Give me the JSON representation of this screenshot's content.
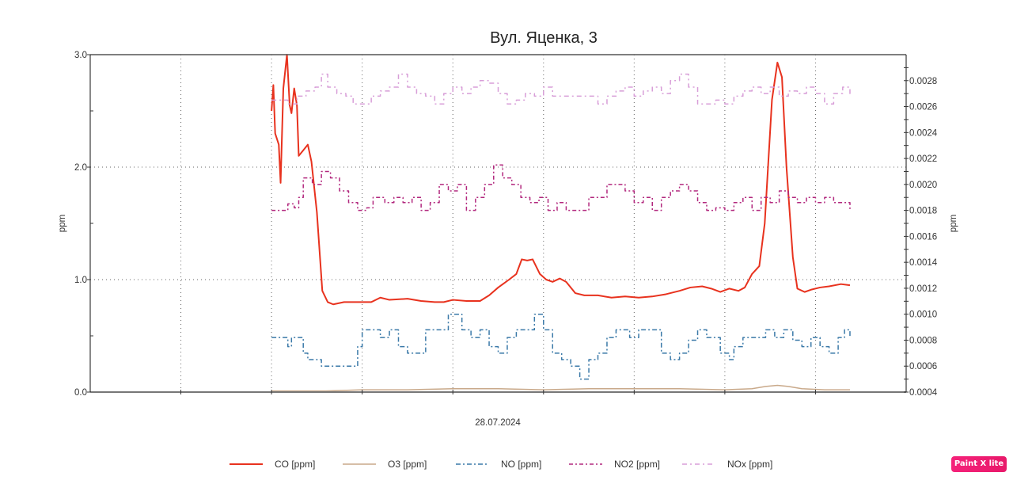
{
  "chart_data": {
    "type": "line",
    "title": "Вул. Яценка, 3",
    "xlabel": "28.07.2024",
    "ylabel": "ppm",
    "y2label": "ppm",
    "xlim": [
      0,
      9
    ],
    "ylim": [
      0,
      3.0
    ],
    "y2lim": [
      0.0004,
      0.003
    ],
    "yticks": [
      "0.0",
      "1.0",
      "2.0",
      "3.0"
    ],
    "yticks_values": [
      0,
      1,
      2,
      3
    ],
    "y2ticks": [
      "0.0004",
      "0.0006",
      "0.0008",
      "0.0010",
      "0.0012",
      "0.0014",
      "0.0016",
      "0.0018",
      "0.0020",
      "0.0022",
      "0.0024",
      "0.0026",
      "0.0028"
    ],
    "y2ticks_values": [
      0.0004,
      0.0006,
      0.0008,
      0.001,
      0.0012,
      0.0014,
      0.0016,
      0.0018,
      0.002,
      0.0022,
      0.0024,
      0.0026,
      0.0028
    ],
    "xgrid": [
      1,
      2,
      3,
      4,
      5,
      6,
      7,
      8
    ],
    "ygrid": [
      1,
      2
    ],
    "grid": true,
    "legend_position": "bottom",
    "series": [
      {
        "name": "CO [ppm]",
        "axis": "left",
        "color": "#e8321e",
        "dash": "solid",
        "width": 2,
        "points": [
          [
            2.0,
            2.5
          ],
          [
            2.02,
            2.73
          ],
          [
            2.04,
            2.3
          ],
          [
            2.08,
            2.2
          ],
          [
            2.1,
            1.86
          ],
          [
            2.13,
            2.7
          ],
          [
            2.17,
            3.0
          ],
          [
            2.2,
            2.55
          ],
          [
            2.22,
            2.48
          ],
          [
            2.25,
            2.7
          ],
          [
            2.28,
            2.55
          ],
          [
            2.3,
            2.1
          ],
          [
            2.35,
            2.15
          ],
          [
            2.4,
            2.2
          ],
          [
            2.44,
            2.05
          ],
          [
            2.5,
            1.6
          ],
          [
            2.56,
            0.9
          ],
          [
            2.62,
            0.8
          ],
          [
            2.68,
            0.78
          ],
          [
            2.8,
            0.8
          ],
          [
            3.0,
            0.8
          ],
          [
            3.1,
            0.8
          ],
          [
            3.2,
            0.84
          ],
          [
            3.3,
            0.82
          ],
          [
            3.5,
            0.83
          ],
          [
            3.65,
            0.81
          ],
          [
            3.8,
            0.8
          ],
          [
            3.9,
            0.8
          ],
          [
            4.0,
            0.82
          ],
          [
            4.15,
            0.81
          ],
          [
            4.3,
            0.81
          ],
          [
            4.4,
            0.86
          ],
          [
            4.5,
            0.93
          ],
          [
            4.62,
            1.0
          ],
          [
            4.7,
            1.05
          ],
          [
            4.76,
            1.18
          ],
          [
            4.82,
            1.17
          ],
          [
            4.88,
            1.18
          ],
          [
            4.96,
            1.05
          ],
          [
            5.03,
            1.0
          ],
          [
            5.1,
            0.98
          ],
          [
            5.18,
            1.01
          ],
          [
            5.25,
            0.98
          ],
          [
            5.35,
            0.88
          ],
          [
            5.45,
            0.86
          ],
          [
            5.6,
            0.86
          ],
          [
            5.75,
            0.84
          ],
          [
            5.9,
            0.85
          ],
          [
            6.05,
            0.84
          ],
          [
            6.2,
            0.85
          ],
          [
            6.35,
            0.87
          ],
          [
            6.5,
            0.9
          ],
          [
            6.62,
            0.93
          ],
          [
            6.75,
            0.94
          ],
          [
            6.85,
            0.92
          ],
          [
            6.95,
            0.89
          ],
          [
            7.05,
            0.92
          ],
          [
            7.15,
            0.9
          ],
          [
            7.22,
            0.93
          ],
          [
            7.3,
            1.05
          ],
          [
            7.38,
            1.12
          ],
          [
            7.44,
            1.5
          ],
          [
            7.52,
            2.6
          ],
          [
            7.58,
            2.93
          ],
          [
            7.63,
            2.8
          ],
          [
            7.68,
            2.0
          ],
          [
            7.75,
            1.2
          ],
          [
            7.8,
            0.92
          ],
          [
            7.88,
            0.89
          ],
          [
            7.95,
            0.91
          ],
          [
            8.05,
            0.93
          ],
          [
            8.15,
            0.94
          ],
          [
            8.28,
            0.96
          ],
          [
            8.38,
            0.95
          ]
        ]
      },
      {
        "name": "O3 [ppm]",
        "axis": "left",
        "color": "#c9a98a",
        "dash": "solid",
        "width": 1.5,
        "points": [
          [
            2.0,
            0.01
          ],
          [
            2.6,
            0.01
          ],
          [
            3.0,
            0.02
          ],
          [
            3.5,
            0.02
          ],
          [
            4.0,
            0.03
          ],
          [
            4.5,
            0.03
          ],
          [
            5.0,
            0.02
          ],
          [
            5.5,
            0.03
          ],
          [
            6.0,
            0.03
          ],
          [
            6.5,
            0.03
          ],
          [
            7.0,
            0.02
          ],
          [
            7.3,
            0.03
          ],
          [
            7.45,
            0.05
          ],
          [
            7.58,
            0.06
          ],
          [
            7.7,
            0.05
          ],
          [
            7.85,
            0.03
          ],
          [
            8.1,
            0.02
          ],
          [
            8.38,
            0.02
          ]
        ]
      },
      {
        "name": "NO [ppm]",
        "axis": "right",
        "color": "#3a79a8",
        "dash": "dashdot",
        "width": 1.5,
        "points": [
          [
            2.0,
            0.00082
          ],
          [
            2.12,
            0.00082
          ],
          [
            2.18,
            0.00075
          ],
          [
            2.22,
            0.00082
          ],
          [
            2.3,
            0.00082
          ],
          [
            2.35,
            0.0007
          ],
          [
            2.4,
            0.00065
          ],
          [
            2.55,
            0.0006
          ],
          [
            2.85,
            0.0006
          ],
          [
            2.95,
            0.00075
          ],
          [
            3.0,
            0.00088
          ],
          [
            3.1,
            0.00088
          ],
          [
            3.2,
            0.00082
          ],
          [
            3.3,
            0.00088
          ],
          [
            3.4,
            0.00075
          ],
          [
            3.5,
            0.0007
          ],
          [
            3.6,
            0.0007
          ],
          [
            3.7,
            0.00088
          ],
          [
            3.85,
            0.00088
          ],
          [
            3.95,
            0.001
          ],
          [
            4.1,
            0.00088
          ],
          [
            4.2,
            0.00082
          ],
          [
            4.3,
            0.00088
          ],
          [
            4.4,
            0.00075
          ],
          [
            4.5,
            0.0007
          ],
          [
            4.6,
            0.00082
          ],
          [
            4.7,
            0.00088
          ],
          [
            4.8,
            0.00088
          ],
          [
            4.9,
            0.001
          ],
          [
            5.0,
            0.00088
          ],
          [
            5.1,
            0.0007
          ],
          [
            5.2,
            0.00065
          ],
          [
            5.3,
            0.0006
          ],
          [
            5.4,
            0.0005
          ],
          [
            5.5,
            0.00065
          ],
          [
            5.6,
            0.0007
          ],
          [
            5.7,
            0.00082
          ],
          [
            5.8,
            0.00088
          ],
          [
            5.95,
            0.00082
          ],
          [
            6.05,
            0.00088
          ],
          [
            6.2,
            0.00088
          ],
          [
            6.3,
            0.0007
          ],
          [
            6.4,
            0.00065
          ],
          [
            6.5,
            0.0007
          ],
          [
            6.6,
            0.0008
          ],
          [
            6.7,
            0.00088
          ],
          [
            6.8,
            0.00082
          ],
          [
            6.95,
            0.0007
          ],
          [
            7.05,
            0.00065
          ],
          [
            7.1,
            0.00075
          ],
          [
            7.2,
            0.00082
          ],
          [
            7.35,
            0.00082
          ],
          [
            7.45,
            0.00088
          ],
          [
            7.55,
            0.00082
          ],
          [
            7.65,
            0.00088
          ],
          [
            7.75,
            0.0008
          ],
          [
            7.85,
            0.00075
          ],
          [
            7.95,
            0.00082
          ],
          [
            8.05,
            0.00075
          ],
          [
            8.15,
            0.0007
          ],
          [
            8.25,
            0.00082
          ],
          [
            8.32,
            0.00088
          ],
          [
            8.38,
            0.00082
          ]
        ]
      },
      {
        "name": "NO2 [ppm]",
        "axis": "right",
        "color": "#b2287e",
        "dash": "dashdot2",
        "width": 1.5,
        "points": [
          [
            2.0,
            0.0018
          ],
          [
            2.1,
            0.0018
          ],
          [
            2.18,
            0.00185
          ],
          [
            2.25,
            0.00182
          ],
          [
            2.3,
            0.0019
          ],
          [
            2.35,
            0.00205
          ],
          [
            2.45,
            0.002
          ],
          [
            2.55,
            0.0021
          ],
          [
            2.65,
            0.00205
          ],
          [
            2.75,
            0.00195
          ],
          [
            2.85,
            0.00186
          ],
          [
            2.95,
            0.0018
          ],
          [
            3.05,
            0.00182
          ],
          [
            3.12,
            0.0019
          ],
          [
            3.25,
            0.00186
          ],
          [
            3.35,
            0.0019
          ],
          [
            3.45,
            0.00186
          ],
          [
            3.55,
            0.0019
          ],
          [
            3.65,
            0.0018
          ],
          [
            3.75,
            0.00186
          ],
          [
            3.85,
            0.002
          ],
          [
            3.95,
            0.00195
          ],
          [
            4.05,
            0.002
          ],
          [
            4.15,
            0.0018
          ],
          [
            4.25,
            0.0019
          ],
          [
            4.35,
            0.002
          ],
          [
            4.45,
            0.00215
          ],
          [
            4.55,
            0.00205
          ],
          [
            4.65,
            0.002
          ],
          [
            4.75,
            0.0019
          ],
          [
            4.85,
            0.00186
          ],
          [
            4.95,
            0.0019
          ],
          [
            5.05,
            0.0018
          ],
          [
            5.15,
            0.00186
          ],
          [
            5.25,
            0.0018
          ],
          [
            5.4,
            0.0018
          ],
          [
            5.5,
            0.0019
          ],
          [
            5.6,
            0.0019
          ],
          [
            5.7,
            0.002
          ],
          [
            5.8,
            0.002
          ],
          [
            5.9,
            0.00195
          ],
          [
            6.0,
            0.00186
          ],
          [
            6.1,
            0.0019
          ],
          [
            6.2,
            0.0018
          ],
          [
            6.3,
            0.0019
          ],
          [
            6.4,
            0.00195
          ],
          [
            6.5,
            0.002
          ],
          [
            6.6,
            0.00195
          ],
          [
            6.7,
            0.00186
          ],
          [
            6.8,
            0.0018
          ],
          [
            6.9,
            0.00182
          ],
          [
            7.0,
            0.0018
          ],
          [
            7.1,
            0.00186
          ],
          [
            7.2,
            0.0019
          ],
          [
            7.3,
            0.0018
          ],
          [
            7.4,
            0.0019
          ],
          [
            7.5,
            0.00186
          ],
          [
            7.6,
            0.00195
          ],
          [
            7.7,
            0.0019
          ],
          [
            7.8,
            0.00186
          ],
          [
            7.9,
            0.0019
          ],
          [
            8.0,
            0.00186
          ],
          [
            8.1,
            0.0019
          ],
          [
            8.2,
            0.00186
          ],
          [
            8.3,
            0.00186
          ],
          [
            8.38,
            0.0018
          ]
        ]
      },
      {
        "name": "NOx [ppm]",
        "axis": "right",
        "color": "#d89ed8",
        "dash": "dashdot3",
        "width": 1.5,
        "points": [
          [
            2.0,
            0.00265
          ],
          [
            2.1,
            0.00265
          ],
          [
            2.18,
            0.00262
          ],
          [
            2.28,
            0.00268
          ],
          [
            2.38,
            0.00272
          ],
          [
            2.48,
            0.00275
          ],
          [
            2.55,
            0.00285
          ],
          [
            2.62,
            0.00275
          ],
          [
            2.72,
            0.0027
          ],
          [
            2.82,
            0.00268
          ],
          [
            2.9,
            0.00262
          ],
          [
            3.0,
            0.00262
          ],
          [
            3.1,
            0.00268
          ],
          [
            3.2,
            0.00272
          ],
          [
            3.3,
            0.00275
          ],
          [
            3.4,
            0.00285
          ],
          [
            3.5,
            0.00275
          ],
          [
            3.6,
            0.0027
          ],
          [
            3.7,
            0.00268
          ],
          [
            3.8,
            0.00262
          ],
          [
            3.9,
            0.0027
          ],
          [
            4.0,
            0.00275
          ],
          [
            4.1,
            0.0027
          ],
          [
            4.2,
            0.00275
          ],
          [
            4.3,
            0.0028
          ],
          [
            4.4,
            0.00278
          ],
          [
            4.5,
            0.0027
          ],
          [
            4.6,
            0.00262
          ],
          [
            4.7,
            0.00265
          ],
          [
            4.8,
            0.0027
          ],
          [
            4.9,
            0.00268
          ],
          [
            5.0,
            0.00275
          ],
          [
            5.1,
            0.00268
          ],
          [
            5.3,
            0.00268
          ],
          [
            5.5,
            0.00268
          ],
          [
            5.6,
            0.00262
          ],
          [
            5.7,
            0.00268
          ],
          [
            5.8,
            0.00272
          ],
          [
            5.9,
            0.00275
          ],
          [
            6.0,
            0.00268
          ],
          [
            6.1,
            0.00272
          ],
          [
            6.2,
            0.00275
          ],
          [
            6.3,
            0.0027
          ],
          [
            6.4,
            0.0028
          ],
          [
            6.5,
            0.00285
          ],
          [
            6.6,
            0.00275
          ],
          [
            6.7,
            0.00262
          ],
          [
            6.8,
            0.00262
          ],
          [
            6.9,
            0.00265
          ],
          [
            7.0,
            0.00262
          ],
          [
            7.1,
            0.00268
          ],
          [
            7.2,
            0.00272
          ],
          [
            7.3,
            0.00275
          ],
          [
            7.4,
            0.0027
          ],
          [
            7.5,
            0.00275
          ],
          [
            7.6,
            0.00268
          ],
          [
            7.7,
            0.00272
          ],
          [
            7.8,
            0.0027
          ],
          [
            7.9,
            0.00275
          ],
          [
            8.0,
            0.0027
          ],
          [
            8.1,
            0.00262
          ],
          [
            8.2,
            0.0027
          ],
          [
            8.3,
            0.00275
          ],
          [
            8.38,
            0.00268
          ]
        ]
      }
    ]
  },
  "watermark": {
    "label": "Paint X lite",
    "color": "#f0207a"
  }
}
